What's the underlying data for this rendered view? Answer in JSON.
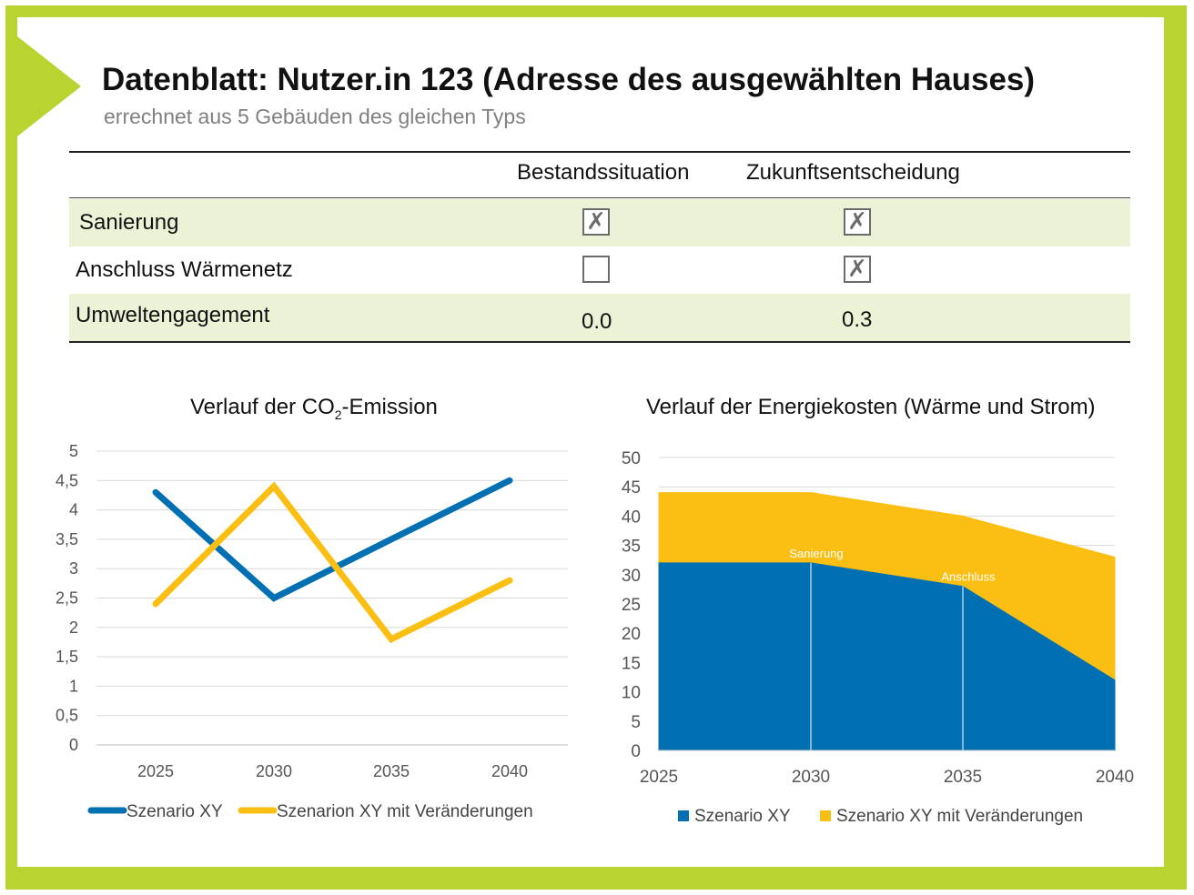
{
  "header": {
    "title": "Datenblatt: Nutzer.in 123 (Adresse des ausgewählten Hauses)",
    "subtitle": "errechnet aus 5 Gebäuden des gleichen Typs"
  },
  "table": {
    "col1": "Bestandssituation",
    "col2": "Zukunftsentscheidung",
    "rows": [
      {
        "label": "Sanierung",
        "c1": true,
        "c2": true
      },
      {
        "label": "Anschluss Wärmenetz",
        "c1": false,
        "c2": true
      },
      {
        "label": "Umweltengagement",
        "c1": "0.0",
        "c2": "0.3"
      }
    ],
    "check_mark": "✗"
  },
  "colors": {
    "frame": "#b9d431",
    "blue": "#0070b3",
    "orange": "#fbbf14",
    "row_green": "#ebf2d6"
  },
  "chart_data": [
    {
      "type": "line",
      "title_pre": "Verlauf der CO",
      "title_sub": "2",
      "title_post": "-Emission",
      "categories": [
        "2025",
        "2030",
        "2035",
        "2040"
      ],
      "series": [
        {
          "name": "Szenario XY",
          "values": [
            4.3,
            2.5,
            3.5,
            4.5
          ]
        },
        {
          "name": "Szenarion XY mit Veränderungen",
          "values": [
            2.4,
            4.4,
            1.8,
            2.8
          ]
        }
      ],
      "ylim": [
        0,
        5
      ],
      "yticks": [
        "0",
        "0,5",
        "1",
        "1,5",
        "2",
        "2,5",
        "3",
        "3,5",
        "4",
        "4,5",
        "5"
      ],
      "grid": true,
      "legend": "bottom"
    },
    {
      "type": "area",
      "title": "Verlauf der Energiekosten (Wärme und Strom)",
      "categories": [
        "2025",
        "2030",
        "2035",
        "2040"
      ],
      "series": [
        {
          "name": "Szenario XY",
          "values": [
            32,
            32,
            28,
            12
          ]
        },
        {
          "name": "Szenario XY mit Veränderungen",
          "values": [
            44,
            44,
            40,
            33
          ]
        }
      ],
      "ylim": [
        0,
        50
      ],
      "yticks": [
        "0",
        "5",
        "10",
        "15",
        "20",
        "25",
        "30",
        "35",
        "40",
        "45",
        "50"
      ],
      "annotations": [
        {
          "text": "Sanierung",
          "x": "2030",
          "y": 32
        },
        {
          "text": "Anschluss",
          "x": "2035",
          "y": 28
        }
      ],
      "grid": true,
      "legend": "bottom"
    }
  ]
}
